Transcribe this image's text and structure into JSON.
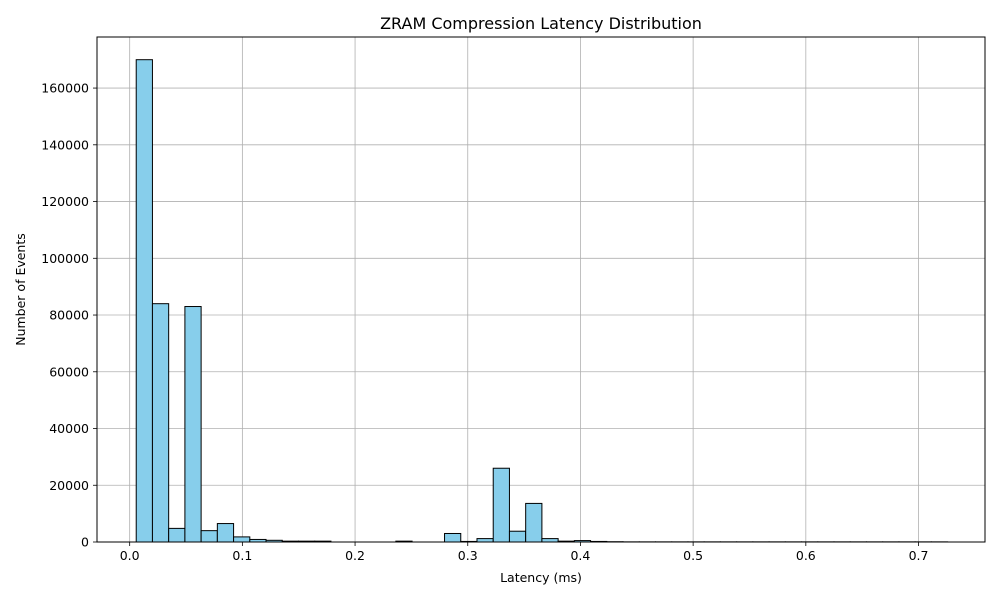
{
  "chart_data": {
    "type": "bar",
    "title": "ZRAM Compression Latency Distribution",
    "xlabel": "Latency (ms)",
    "ylabel": "Number of Events",
    "xlim": [
      -0.029,
      0.759
    ],
    "ylim": [
      0,
      178000
    ],
    "xticks": [
      0.0,
      0.1,
      0.2,
      0.3,
      0.4,
      0.5,
      0.6,
      0.7
    ],
    "xtick_labels": [
      "0.0",
      "0.1",
      "0.2",
      "0.3",
      "0.4",
      "0.5",
      "0.6",
      "0.7"
    ],
    "yticks": [
      0,
      20000,
      40000,
      60000,
      80000,
      100000,
      120000,
      140000,
      160000
    ],
    "ytick_labels": [
      "0",
      "20000",
      "40000",
      "60000",
      "80000",
      "100000",
      "120000",
      "140000",
      "160000"
    ],
    "grid": true,
    "bar_color": "#87CEEB",
    "edge_color": "#000000",
    "bin_edges": [
      0.0058,
      0.0202,
      0.0346,
      0.049,
      0.0634,
      0.0778,
      0.0922,
      0.1066,
      0.121,
      0.1354,
      0.1498,
      0.1642,
      0.1786,
      0.193,
      0.2074,
      0.2218,
      0.2362,
      0.2506,
      0.265,
      0.2794,
      0.2938,
      0.3082,
      0.3226,
      0.337,
      0.3514,
      0.3658,
      0.3802,
      0.3946,
      0.409,
      0.4234,
      0.4378,
      0.4522,
      0.4666,
      0.481,
      0.4954,
      0.5098,
      0.5242,
      0.5386,
      0.553,
      0.5674,
      0.5818,
      0.5962,
      0.6106,
      0.625,
      0.6394,
      0.6538,
      0.6682,
      0.6826,
      0.697,
      0.7114,
      0.7258
    ],
    "values": [
      170000,
      84000,
      4800,
      83000,
      4000,
      6500,
      1800,
      900,
      600,
      300,
      300,
      300,
      0,
      0,
      0,
      0,
      300,
      0,
      0,
      3000,
      200,
      1200,
      26000,
      3800,
      13600,
      1200,
      300,
      500,
      200,
      100,
      50,
      50,
      50,
      50,
      50,
      50,
      50,
      50,
      50,
      50,
      50,
      50,
      50,
      50,
      50,
      50,
      50,
      50,
      50,
      50
    ]
  }
}
